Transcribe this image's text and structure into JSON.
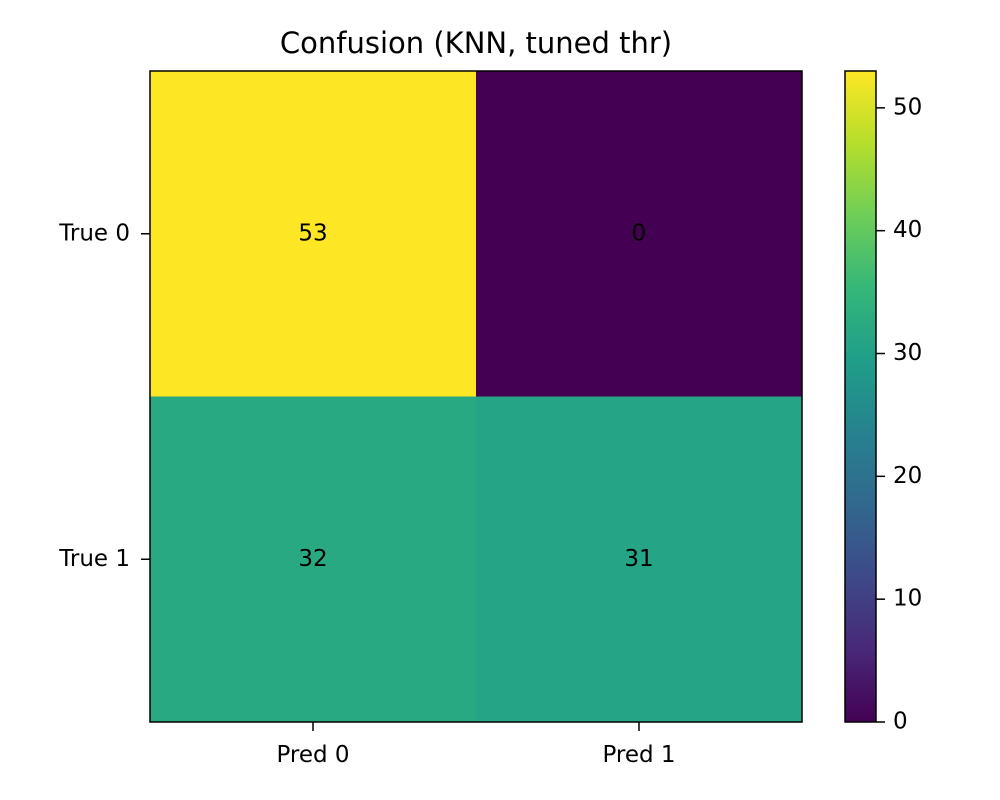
{
  "chart_data": {
    "type": "heatmap",
    "title": "Confusion (KNN, tuned thr)",
    "xlabel": "",
    "ylabel": "",
    "x_categories": [
      "Pred 0",
      "Pred 1"
    ],
    "y_categories": [
      "True 0",
      "True 1"
    ],
    "values": [
      [
        53,
        0
      ],
      [
        32,
        31
      ]
    ],
    "value_labels": [
      [
        "53",
        "0"
      ],
      [
        "32",
        "31"
      ]
    ],
    "colorbar": {
      "min": 0,
      "max": 53,
      "ticks": [
        0,
        10,
        20,
        30,
        40,
        50
      ],
      "tick_labels": [
        "0",
        "10",
        "20",
        "30",
        "40",
        "50"
      ],
      "colormap": "viridis",
      "colormap_stops": [
        "#440154",
        "#482878",
        "#3e4989",
        "#31688e",
        "#26828e",
        "#1f9e89",
        "#35b779",
        "#6ece58",
        "#b5de2b",
        "#fde725"
      ]
    },
    "grid": false,
    "legend": "colorbar-right"
  }
}
